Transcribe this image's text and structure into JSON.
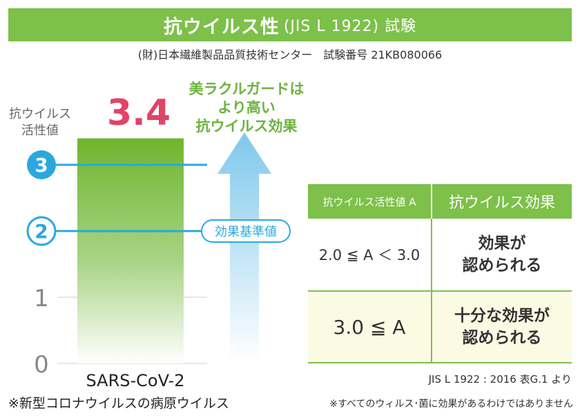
{
  "header": {
    "title": "抗ウイルス性",
    "title_sub": "(JIS L 1922) 試験",
    "organization": "(財)日本繊維製品品質技術センター　試験番号 21KB080066"
  },
  "chart_data": {
    "type": "bar",
    "ylabel_line1": "抗ウイルス",
    "ylabel_line2": "活性値",
    "categories": [
      "SARS-CoV-2"
    ],
    "values": [
      3.4
    ],
    "value_label": "3.4",
    "category_note": "※新型コロナウイルスの病原ウイルス",
    "ylim": [
      0,
      3.4
    ],
    "y_ticks": [
      {
        "value": 0,
        "label": "0",
        "style": "plain"
      },
      {
        "value": 1,
        "label": "1",
        "style": "plain"
      },
      {
        "value": 2,
        "label": "2",
        "style": "circle-outline"
      },
      {
        "value": 3,
        "label": "3",
        "style": "circle-filled"
      }
    ],
    "reference_line": {
      "value": 2,
      "label": "効果基準値"
    },
    "upper_line": {
      "value": 3
    },
    "arrow_label": [
      "美ラクルガードは",
      "より高い",
      "抗ウイルス効果"
    ]
  },
  "table": {
    "headers": [
      "抗ウイルス活性値 A",
      "抗ウイルス効果"
    ],
    "rows": [
      {
        "range": "2.0 ≦ A ＜ 3.0",
        "effect_line1": "効果が",
        "effect_line2": "認められる"
      },
      {
        "range": "3.0 ≦ A",
        "effect_line1": "十分な効果が",
        "effect_line2": "認められる"
      }
    ],
    "source": "JIS L 1922 : 2016 表G.1 より"
  },
  "footnote": "※すべてのウィルス･菌に効果があるわけではありません",
  "colors": {
    "banner": "#7dc04a",
    "bar_top": "#6fb52f",
    "value": "#e04466",
    "blue": "#2aa8de",
    "arrow": "#7fc8ec",
    "grid": "#cccccc"
  }
}
